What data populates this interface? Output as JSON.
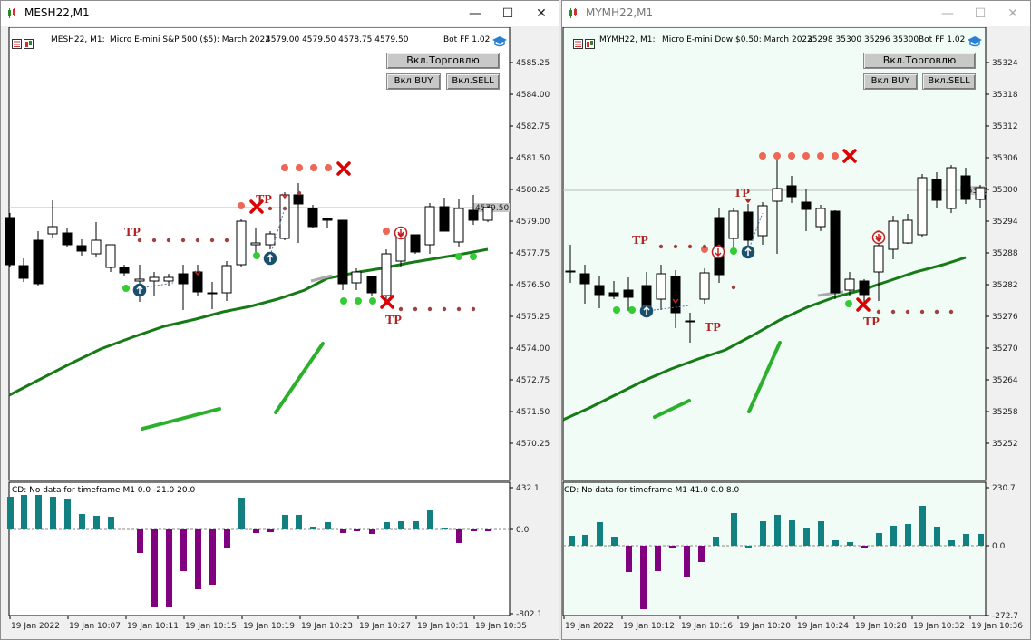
{
  "colors": {
    "bull": "#ffffff",
    "bear": "#000000",
    "ma": "#167a16",
    "hist_pos": "#128080",
    "hist_neg": "#800080",
    "dot_green": "#33cc33",
    "dot_salmon": "#ee6655",
    "dot_brown": "#a04040",
    "red_x": "#dd0000",
    "tp": "#b02222",
    "bg_left": "#ffffff",
    "bg_right": "#f0fcf5"
  },
  "left": {
    "title": "MESH22,M1",
    "header_symbol": "MESH22, M1:",
    "header_desc": "Micro E-mini S&P 500 ($5): March 2022",
    "header_ohlc": "4579.00 4579.50 4578.75 4579.50",
    "bot_label": "Bot FF 1.02",
    "btn_trade": "Вкл.Торговлю",
    "btn_buy": "Вкл.BUY",
    "btn_sell": "Вкл.SELL",
    "cd_text": "CD: No data for timeframe M1 0.0 -21.0 20.0",
    "price_labels": [
      "4585.25",
      "4584.00",
      "4582.75",
      "4581.50",
      "4580.25",
      "4579.00",
      "4577.75",
      "4576.50",
      "4575.25",
      "4574.00",
      "4572.75",
      "4571.50",
      "4570.25"
    ],
    "current_price": "4579.50",
    "ind_labels": [
      "432.1",
      "0.0",
      "-802.1"
    ],
    "time_labels": [
      "19 Jan 2022",
      "19 Jan 10:07",
      "19 Jan 10:11",
      "19 Jan 10:15",
      "19 Jan 10:19",
      "19 Jan 10:23",
      "19 Jan 10:27",
      "19 Jan 10:31",
      "19 Jan 10:35"
    ],
    "tp_label": "TP"
  },
  "right": {
    "title": "MYMH22,M1",
    "header_symbol": "MYMH22, M1:",
    "header_desc": "Micro E-mini Dow $0.50: March 2022",
    "header_ohlc": "35298 35300 35296 35300",
    "bot_label": "Bot FF 1.02",
    "btn_trade": "Вкл.Торговлю",
    "btn_buy": "Вкл.BUY",
    "btn_sell": "Вкл.SELL",
    "cd_text": "CD: No data for timeframe M1 41.0 0.0 8.0",
    "price_labels": [
      "35324",
      "35318",
      "35312",
      "35306",
      "35300",
      "35294",
      "35288",
      "35282",
      "35276",
      "35270",
      "35264",
      "35258",
      "35252"
    ],
    "current_price": "35300",
    "ind_labels": [
      "230.7",
      "0.0",
      "-272.7"
    ],
    "time_labels": [
      "19 Jan 2022",
      "19 Jan 10:12",
      "19 Jan 10:16",
      "19 Jan 10:20",
      "19 Jan 10:24",
      "19 Jan 10:28",
      "19 Jan 10:32",
      "19 Jan 10:36"
    ],
    "tp_label": "TP"
  }
}
